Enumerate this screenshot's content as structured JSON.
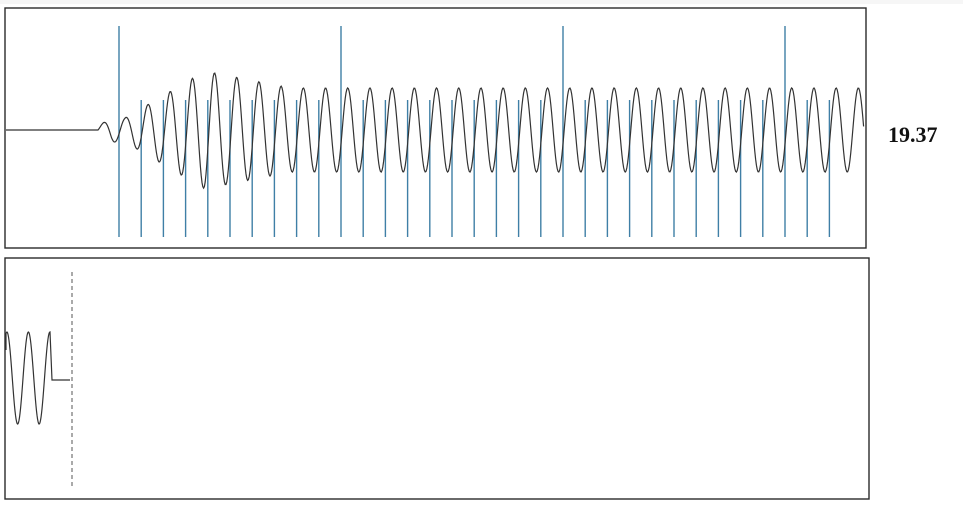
{
  "figure": {
    "number": "19.37"
  },
  "colors": {
    "waveform": "#333333",
    "pulse_lines": "#3f7fa6",
    "frame": "#2a2a2a",
    "marker": "#555555",
    "background": "#ffffff"
  }
}
